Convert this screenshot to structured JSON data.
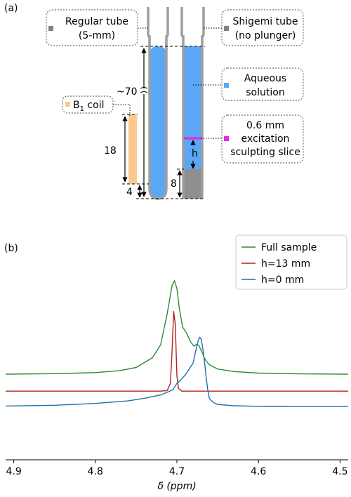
{
  "colors": {
    "tube_gray": "#9e9e9e",
    "solution": "#5aa7f5",
    "plunger": "#8f8f8f",
    "coil": "#fbc98e",
    "slice": "#ee22ee",
    "full": "#2e8b2e",
    "h13": "#b22222",
    "h0": "#1f6fa8"
  },
  "panel_a": {
    "label": "(a)",
    "regular_tube": {
      "line1": "Regular tube",
      "line2": "(5-mm)",
      "icon": "gray-square"
    },
    "shigemi_tube": {
      "line1": "Shigemi tube",
      "line2": "(no plunger)",
      "icon": "gray-square"
    },
    "aqueous": {
      "line1": "Aqueous",
      "line2": "solution",
      "icon": "blue-square"
    },
    "slice": {
      "line1": "0.6 mm",
      "line2": "excitation",
      "line3": "sculpting slice",
      "icon": "magenta-square"
    },
    "coil": {
      "text": "B",
      "sub": "1",
      "rest": " coil",
      "icon": "orange-square"
    },
    "dims": {
      "total": "~70",
      "coil": "18",
      "gap": "4",
      "plunger": "8",
      "h": "h"
    }
  },
  "panel_b": {
    "label": "(b)",
    "legend": [
      "Full sample",
      "h=13 mm",
      "h=0 mm"
    ]
  },
  "chart_data": {
    "type": "line",
    "xlabel": "δ (ppm)",
    "xlim": [
      4.91,
      4.49
    ],
    "x_reversed": true,
    "xticks": [
      4.9,
      4.8,
      4.7,
      4.6,
      4.5
    ],
    "xtick_labels": [
      "4.9",
      "4.8",
      "4.7",
      "4.6",
      "4.5"
    ],
    "y_ticks_shown": false,
    "legend_position": "top-right",
    "series": [
      {
        "name": "Full sample",
        "color": "#2e8b2e",
        "baseline": 0.66,
        "x": [
          4.91,
          4.85,
          4.8,
          4.77,
          4.75,
          4.73,
          4.72,
          4.712,
          4.706,
          4.703,
          4.7,
          4.697,
          4.693,
          4.688,
          4.683,
          4.679,
          4.676,
          4.673,
          4.669,
          4.665,
          4.66,
          4.65,
          4.63,
          4.6,
          4.55,
          4.49
        ],
        "y": [
          0.66,
          0.68,
          0.72,
          0.8,
          0.92,
          1.3,
          1.8,
          3.0,
          4.1,
          4.3,
          4.0,
          3.2,
          2.5,
          2.25,
          1.9,
          1.75,
          1.82,
          1.78,
          1.5,
          1.2,
          1.02,
          0.86,
          0.76,
          0.7,
          0.67,
          0.66
        ]
      },
      {
        "name": "h=13 mm",
        "color": "#b22222",
        "baseline": 0.0,
        "x": [
          4.91,
          4.72,
          4.712,
          4.708,
          4.706,
          4.704,
          4.702,
          4.7,
          4.698,
          4.694,
          4.68,
          4.49
        ],
        "y": [
          0.0,
          0.0,
          0.02,
          0.3,
          1.5,
          3.1,
          2.6,
          0.6,
          0.1,
          0.0,
          0.0,
          0.0
        ]
      },
      {
        "name": "h=0 mm",
        "color": "#1f6fa8",
        "baseline": -0.6,
        "x": [
          4.91,
          4.85,
          4.8,
          4.76,
          4.74,
          4.72,
          4.71,
          4.705,
          4.7,
          4.695,
          4.69,
          4.685,
          4.68,
          4.677,
          4.674,
          4.672,
          4.67,
          4.668,
          4.666,
          4.664,
          4.662,
          4.66,
          4.655,
          4.65,
          4.63,
          4.6,
          4.55,
          4.49
        ],
        "y": [
          -0.58,
          -0.55,
          -0.48,
          -0.38,
          -0.28,
          -0.15,
          -0.02,
          0.05,
          0.3,
          0.45,
          0.62,
          0.85,
          1.1,
          1.55,
          1.95,
          2.1,
          2.0,
          1.6,
          1.1,
          0.5,
          0.0,
          -0.3,
          -0.45,
          -0.52,
          -0.57,
          -0.59,
          -0.6,
          -0.6
        ]
      }
    ]
  }
}
